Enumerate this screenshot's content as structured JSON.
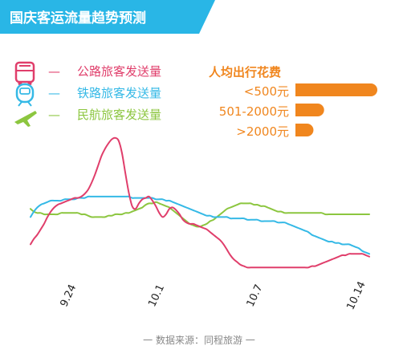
{
  "title": "国庆客运流量趋势预测",
  "colors": {
    "title_bg": "#29b6e6",
    "road": "#e03e6b",
    "rail": "#35b9e6",
    "air": "#8cc63f",
    "spend": "#f0861e",
    "source": "#888888"
  },
  "legend": [
    {
      "key": "road",
      "icon": "bus-icon",
      "dash": "—",
      "label": "公路旅客发送量"
    },
    {
      "key": "rail",
      "icon": "train-icon",
      "dash": "—",
      "label": "铁路旅客发送量"
    },
    {
      "key": "air",
      "icon": "airplane-icon",
      "dash": "—",
      "label": "民航旅客发送量"
    }
  ],
  "spend": {
    "title": "人均出行花费",
    "items": [
      {
        "label": "<500元",
        "value": 100
      },
      {
        "label": "501-2000元",
        "value": 35
      },
      {
        "label": ">2000元",
        "value": 22
      }
    ]
  },
  "source": "一 数据来源：同程旅游 一",
  "chart_data": {
    "type": "line",
    "title": "国庆客运流量趋势预测",
    "xlabel": "",
    "ylabel": "",
    "grid": false,
    "x_ticks": [
      "9.24",
      "10.1",
      "10.7",
      "10.14"
    ],
    "x": [
      0,
      1,
      2,
      3,
      4,
      5,
      6,
      7,
      8,
      9,
      10,
      11,
      12,
      13,
      14,
      15,
      16,
      17,
      18,
      19,
      20,
      21,
      22,
      23,
      24,
      25,
      26,
      27,
      28,
      29,
      30,
      31,
      32,
      33,
      34,
      35,
      36,
      37,
      38,
      39,
      40,
      41,
      42,
      43,
      44,
      45,
      46,
      47,
      48,
      49,
      50,
      51,
      52,
      53,
      54,
      55,
      56,
      57,
      58,
      59,
      60,
      61,
      62,
      63,
      64,
      65,
      66,
      67,
      68,
      69,
      70,
      71,
      72,
      73,
      74,
      75,
      76,
      77,
      78,
      79,
      80,
      81,
      82,
      83,
      84,
      85,
      86,
      87,
      88,
      89,
      90,
      91,
      92,
      93,
      94,
      95,
      96,
      97,
      98,
      99,
      100
    ],
    "ylim": [
      0,
      100
    ],
    "series": [
      {
        "name": "公路旅客发送量",
        "color_key": "road",
        "values": [
          18,
          22,
          25,
          29,
          33,
          38,
          42,
          45,
          47,
          48,
          49,
          50,
          51,
          52,
          52,
          53,
          55,
          58,
          63,
          69,
          76,
          83,
          88,
          92,
          95,
          96,
          94,
          85,
          70,
          56,
          46,
          44,
          48,
          51,
          52,
          53,
          50,
          46,
          41,
          38,
          40,
          44,
          45,
          43,
          40,
          36,
          34,
          33,
          33,
          32,
          31,
          30,
          29,
          27,
          25,
          23,
          21,
          18,
          14,
          10,
          7,
          5,
          3,
          2,
          1,
          1,
          1,
          1,
          1,
          1,
          1,
          1,
          1,
          1,
          1,
          1,
          1,
          1,
          1,
          1,
          1,
          1,
          1,
          2,
          2,
          3,
          4,
          5,
          6,
          7,
          8,
          9,
          10,
          10,
          11,
          11,
          11,
          11,
          11,
          10,
          9
        ]
      },
      {
        "name": "铁路旅客发送量",
        "color_key": "rail",
        "values": [
          38,
          42,
          45,
          47,
          48,
          49,
          50,
          50,
          50,
          50,
          51,
          51,
          51,
          51,
          52,
          52,
          52,
          53,
          53,
          53,
          53,
          53,
          53,
          53,
          53,
          53,
          53,
          53,
          53,
          53,
          52,
          52,
          52,
          52,
          52,
          52,
          52,
          51,
          51,
          51,
          50,
          50,
          49,
          48,
          47,
          46,
          45,
          44,
          43,
          42,
          41,
          40,
          39,
          39,
          38,
          38,
          38,
          38,
          38,
          37,
          37,
          37,
          37,
          37,
          36,
          36,
          36,
          36,
          35,
          35,
          35,
          35,
          35,
          34,
          34,
          34,
          33,
          32,
          31,
          30,
          29,
          28,
          27,
          25,
          24,
          23,
          22,
          21,
          20,
          20,
          19,
          19,
          18,
          18,
          18,
          17,
          16,
          15,
          13,
          12,
          11
        ]
      },
      {
        "name": "民航旅客发送量",
        "color_key": "air",
        "values": [
          44,
          42,
          41,
          41,
          40,
          40,
          40,
          40,
          40,
          41,
          41,
          41,
          41,
          41,
          41,
          40,
          40,
          39,
          38,
          38,
          38,
          38,
          38,
          39,
          39,
          40,
          40,
          40,
          41,
          41,
          42,
          43,
          44,
          45,
          47,
          48,
          48,
          49,
          48,
          47,
          46,
          45,
          43,
          41,
          39,
          37,
          35,
          33,
          32,
          31,
          31,
          32,
          33,
          35,
          36,
          38,
          40,
          42,
          44,
          45,
          46,
          47,
          48,
          48,
          48,
          48,
          47,
          47,
          46,
          46,
          45,
          44,
          43,
          42,
          42,
          41,
          41,
          41,
          41,
          41,
          41,
          41,
          41,
          41,
          41,
          41,
          41,
          40,
          40,
          40,
          40,
          40,
          40,
          40,
          40,
          40,
          40,
          40,
          40,
          40,
          40
        ]
      }
    ]
  }
}
